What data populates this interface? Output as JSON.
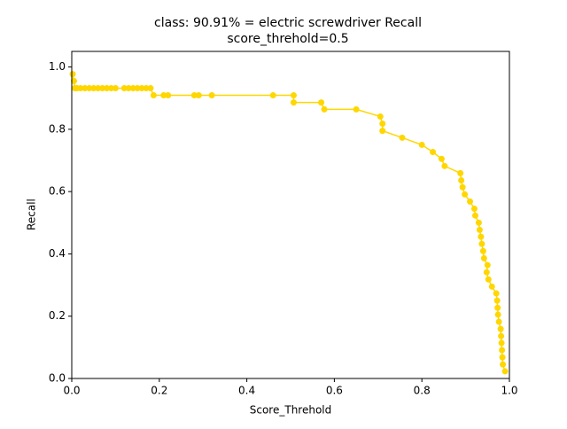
{
  "chart_data": {
    "type": "line",
    "title": "class: 90.91% = electric screwdriver Recall",
    "subtitle": "score_threhold=0.5",
    "x_label": "Score_Threhold",
    "y_label": "Recall",
    "xlim": [
      0,
      1
    ],
    "ylim": [
      0,
      1.05
    ],
    "xticks": [
      {
        "value": 0,
        "label": "0.0"
      },
      {
        "value": 0.2,
        "label": "0.2"
      },
      {
        "value": 0.4,
        "label": "0.4"
      },
      {
        "value": 0.6,
        "label": "0.6"
      },
      {
        "value": 0.8,
        "label": "0.8"
      },
      {
        "value": 1,
        "label": "1.0"
      }
    ],
    "yticks": [
      {
        "value": 0,
        "label": "0.0"
      },
      {
        "value": 0.2,
        "label": "0.2"
      },
      {
        "value": 0.4,
        "label": "0.4"
      },
      {
        "value": 0.6,
        "label": "0.6"
      },
      {
        "value": 0.8,
        "label": "0.8"
      },
      {
        "value": 1,
        "label": "1.0"
      }
    ],
    "series": [
      {
        "color": "#ffd700",
        "x": [
          0.002,
          0.005,
          0.007,
          0.012,
          0.02,
          0.03,
          0.04,
          0.05,
          0.06,
          0.07,
          0.08,
          0.09,
          0.1,
          0.12,
          0.13,
          0.14,
          0.15,
          0.16,
          0.17,
          0.18,
          0.187,
          0.21,
          0.22,
          0.28,
          0.29,
          0.32,
          0.46,
          0.507,
          0.507,
          0.57,
          0.577,
          0.65,
          0.705,
          0.71,
          0.71,
          0.755,
          0.8,
          0.825,
          0.845,
          0.852,
          0.888,
          0.89,
          0.893,
          0.898,
          0.91,
          0.92,
          0.922,
          0.93,
          0.932,
          0.935,
          0.937,
          0.94,
          0.942,
          0.95,
          0.948,
          0.952,
          0.96,
          0.97,
          0.972,
          0.973,
          0.974,
          0.976,
          0.98,
          0.981,
          0.982,
          0.983,
          0.984,
          0.985,
          0.99
        ],
        "values": [
          0.977,
          0.955,
          0.932,
          0.932,
          0.932,
          0.932,
          0.932,
          0.932,
          0.932,
          0.932,
          0.932,
          0.932,
          0.932,
          0.932,
          0.932,
          0.932,
          0.932,
          0.932,
          0.932,
          0.932,
          0.909,
          0.909,
          0.909,
          0.909,
          0.909,
          0.909,
          0.909,
          0.909,
          0.886,
          0.886,
          0.864,
          0.864,
          0.841,
          0.818,
          0.795,
          0.773,
          0.75,
          0.727,
          0.705,
          0.682,
          0.659,
          0.636,
          0.614,
          0.591,
          0.568,
          0.545,
          0.523,
          0.5,
          0.477,
          0.455,
          0.432,
          0.409,
          0.386,
          0.364,
          0.341,
          0.318,
          0.295,
          0.273,
          0.25,
          0.227,
          0.205,
          0.182,
          0.159,
          0.136,
          0.114,
          0.091,
          0.068,
          0.045,
          0.023
        ]
      }
    ]
  }
}
